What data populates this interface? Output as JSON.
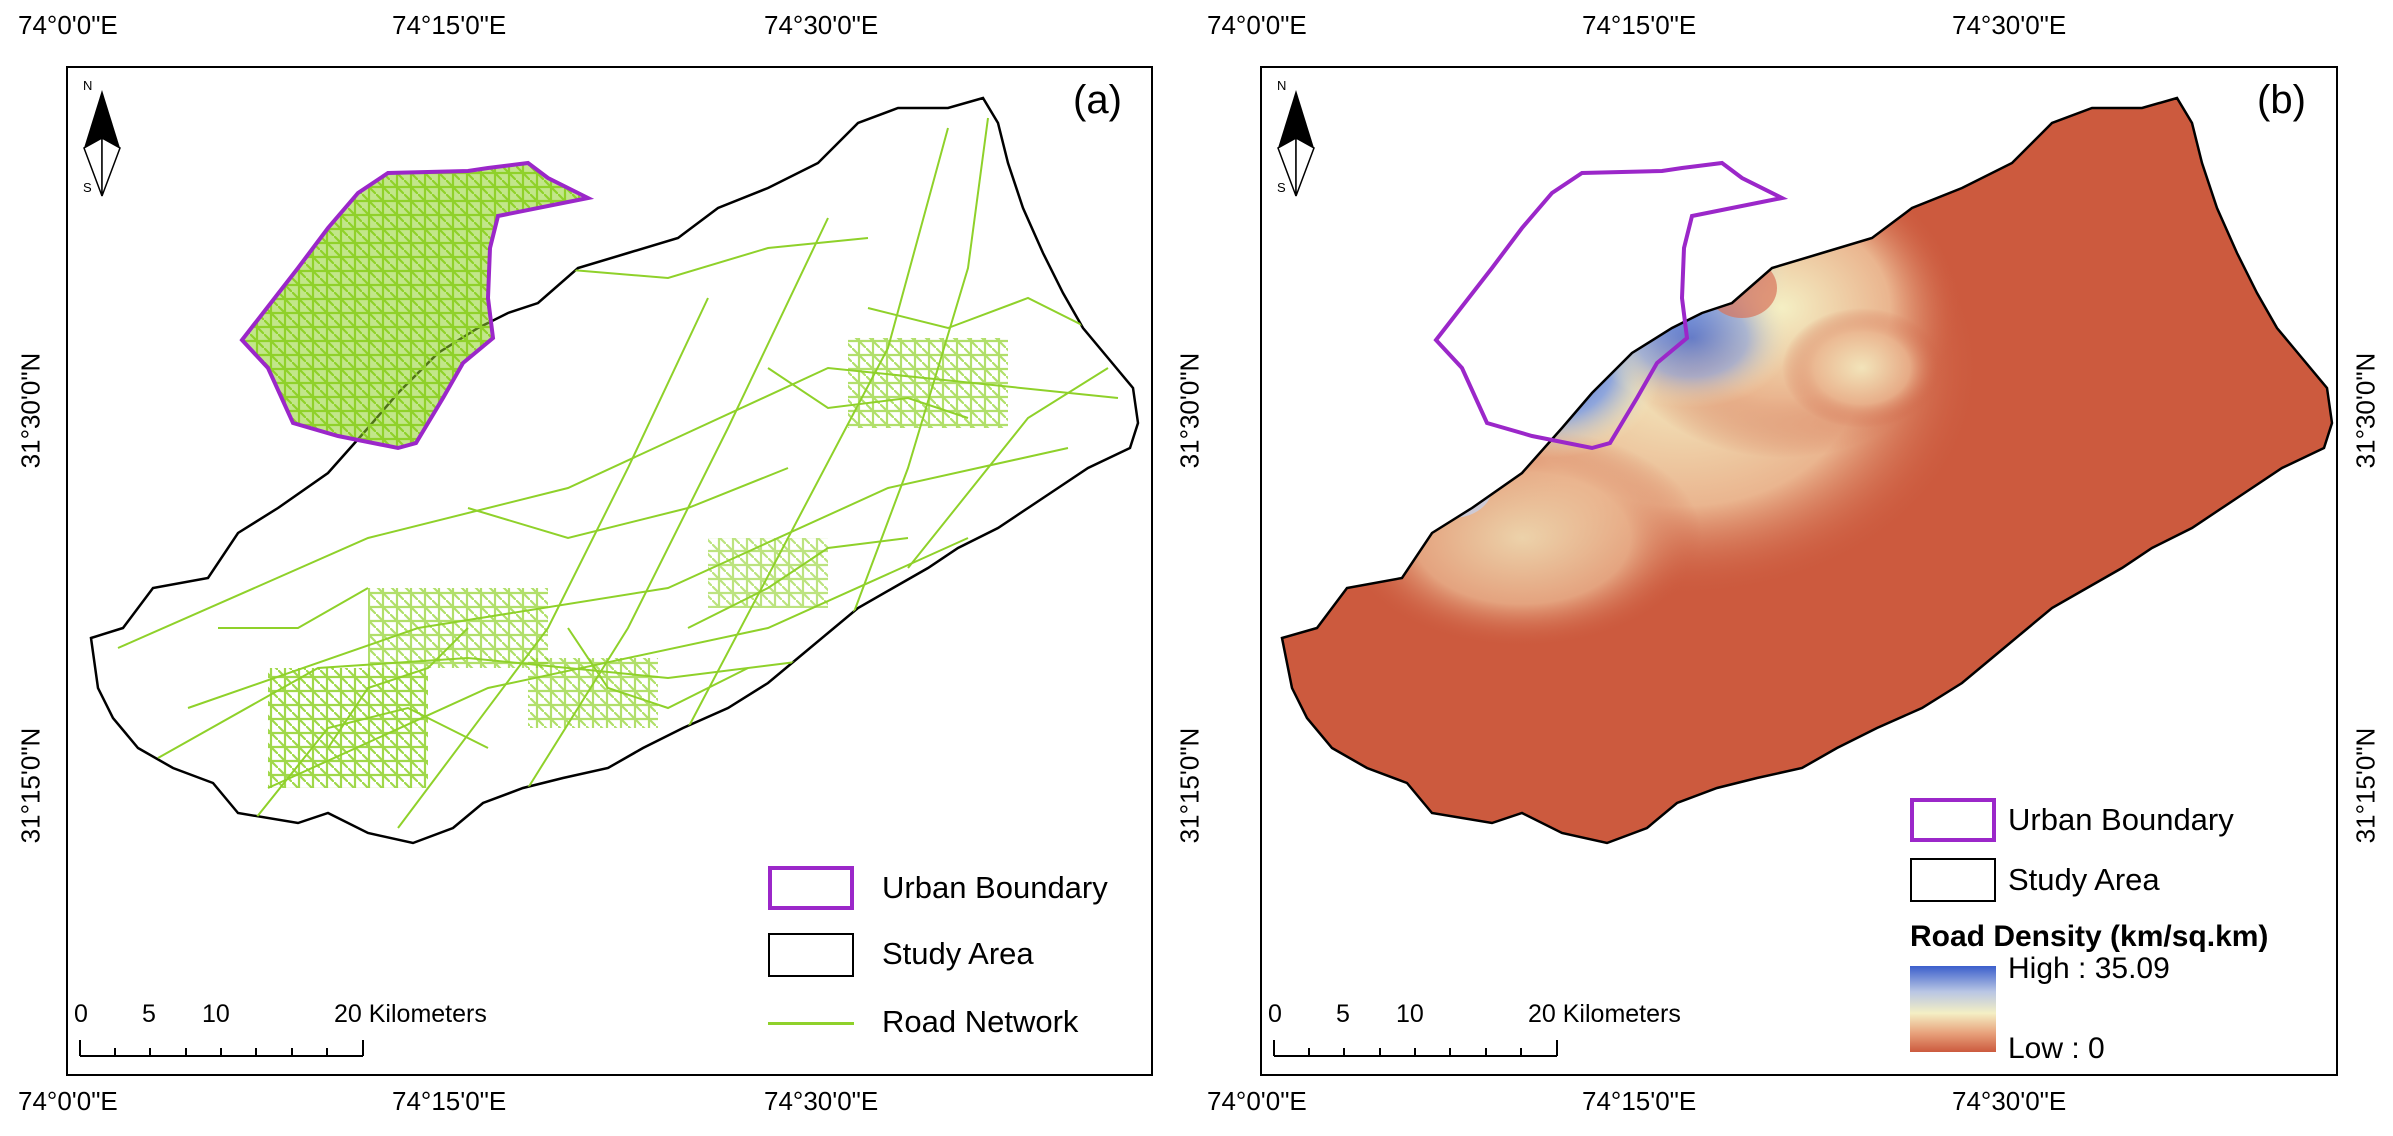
{
  "figure": {
    "top_ticks": [
      "74°0'0\"E",
      "74°15'0\"E",
      "74°30'0\"E"
    ],
    "bottom_ticks": [
      "74°0'0\"E",
      "74°15'0\"E",
      "74°30'0\"E"
    ],
    "lat_ticks": [
      "31°30'0\"N",
      "31°15'0\"N"
    ]
  },
  "panel_a": {
    "label": "(a)",
    "north_n": "N",
    "north_s": "S",
    "scale": {
      "l0": "0",
      "l5": "5",
      "l10": "10",
      "l20": "20 Kilometers"
    },
    "legend": {
      "urban": "Urban Boundary",
      "study": "Study Area",
      "road": "Road Network"
    }
  },
  "panel_b": {
    "label": "(b)",
    "north_n": "N",
    "north_s": "S",
    "scale": {
      "l0": "0",
      "l5": "5",
      "l10": "10",
      "l20": "20 Kilometers"
    },
    "legend": {
      "urban": "Urban Boundary",
      "study": "Study Area",
      "ramp_title": "Road Density (km/sq.km)",
      "high": "High : 35.09",
      "low": "Low : 0"
    }
  },
  "colors": {
    "urban_boundary": "#9b27c9",
    "road": "#8fd12a",
    "study_outline": "#000000",
    "density_high": "#3b5fcc",
    "density_low": "#cc5a3e"
  },
  "density": {
    "max": 35.09,
    "min": 0
  }
}
